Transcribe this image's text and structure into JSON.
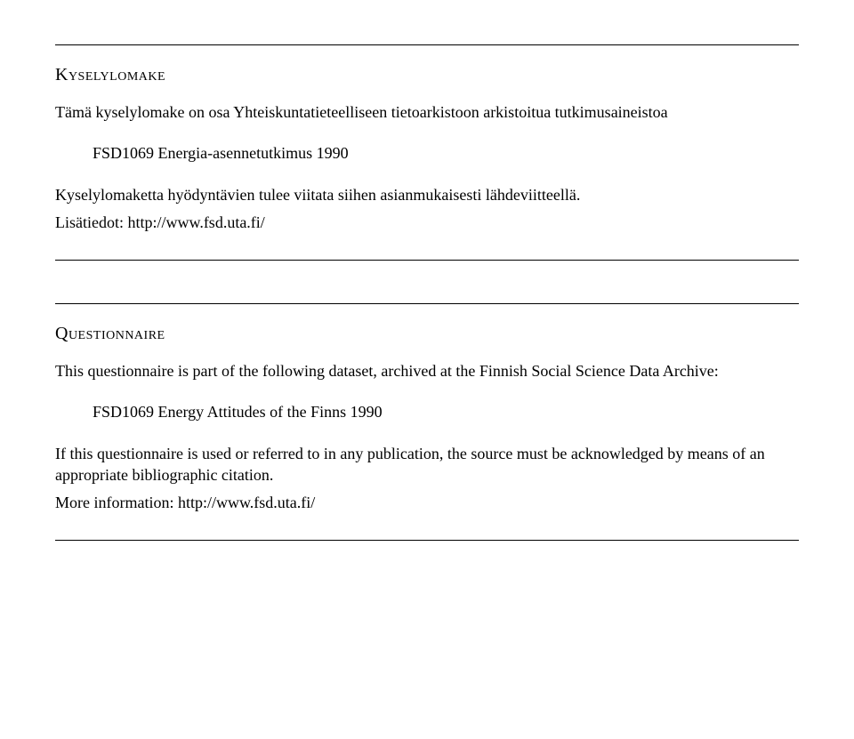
{
  "fi": {
    "title": "Kyselylomake",
    "intro": "Tämä kyselylomake on osa Yhteiskuntatieteelliseen tietoarkistoon arkistoitua tutkimusaineistoa",
    "dataset": "FSD1069 Energia-asennetutkimus 1990",
    "note": "Kyselylomaketta hyödyntävien tulee viitata siihen asianmukaisesti lähdeviitteellä.",
    "more": "Lisätiedot: http://www.fsd.uta.fi/"
  },
  "en": {
    "title": "Questionnaire",
    "intro": "This questionnaire is part of the following dataset, archived at the Finnish Social Science Data Archive:",
    "dataset": "FSD1069 Energy Attitudes of the Finns 1990",
    "note": "If this questionnaire is used or referred to in any publication, the source must be acknowledged by means of an appropriate bibliographic citation.",
    "more": "More information: http://www.fsd.uta.fi/"
  }
}
